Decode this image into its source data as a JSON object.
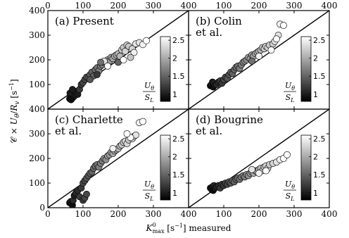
{
  "figure": {
    "ylabel": "C × U_θ/R_v [s⁻¹]",
    "ylabel_parts": {
      "pre": "𝒞 × ",
      "num": "U",
      "sub1": "θ",
      "slash": "/",
      "den": "R",
      "sub2": "v",
      "unit": " [s",
      "exp": "−1",
      "close": "]"
    },
    "xlabel_parts": {
      "sym": "K",
      "sup": "0",
      "sub": "max",
      "unit": " [s",
      "exp": "−1",
      "rest": "] measured"
    }
  },
  "colorbar": {
    "range": [
      0.8,
      2.6
    ],
    "ticks": [
      "1",
      "1.5",
      "2",
      "2.5"
    ],
    "tick_values": [
      1,
      1.5,
      2,
      2.5
    ],
    "label_num": "U",
    "label_num_sub": "θ",
    "label_den": "S",
    "label_den_sub": "L"
  },
  "chart_data": [
    {
      "type": "scatter",
      "label": "(a) Present",
      "label_lines": [
        "(a) Present"
      ],
      "xlim": [
        0,
        400
      ],
      "ylim": [
        0,
        400
      ],
      "xticks": [
        0,
        100,
        200,
        300,
        400
      ],
      "yticks": [
        0,
        100,
        200,
        300,
        400
      ],
      "reference_line": "y = x",
      "points": [
        [
          62,
          42,
          0.9
        ],
        [
          65,
          48,
          1.0
        ],
        [
          68,
          55,
          1.0
        ],
        [
          70,
          45,
          0.9
        ],
        [
          72,
          60,
          1.1
        ],
        [
          75,
          52,
          1.0
        ],
        [
          63,
          65,
          1.0
        ],
        [
          78,
          72,
          1.1
        ],
        [
          82,
          68,
          1.1
        ],
        [
          70,
          80,
          1.0
        ],
        [
          66,
          38,
          0.9
        ],
        [
          85,
          60,
          1.0
        ],
        [
          90,
          80,
          1.2
        ],
        [
          95,
          100,
          1.2
        ],
        [
          100,
          108,
          1.3
        ],
        [
          105,
          120,
          1.3
        ],
        [
          110,
          130,
          1.4
        ],
        [
          115,
          128,
          1.4
        ],
        [
          120,
          140,
          1.5
        ],
        [
          125,
          150,
          1.5
        ],
        [
          130,
          135,
          1.5
        ],
        [
          135,
          160,
          1.6
        ],
        [
          140,
          168,
          1.6
        ],
        [
          145,
          155,
          1.7
        ],
        [
          150,
          175,
          1.7
        ],
        [
          155,
          180,
          1.7
        ],
        [
          160,
          190,
          1.8
        ],
        [
          165,
          185,
          1.8
        ],
        [
          170,
          200,
          1.9
        ],
        [
          175,
          195,
          1.9
        ],
        [
          180,
          210,
          1.9
        ],
        [
          185,
          205,
          2.0
        ],
        [
          190,
          215,
          2.0
        ],
        [
          195,
          220,
          2.0
        ],
        [
          200,
          225,
          2.1
        ],
        [
          205,
          215,
          2.1
        ],
        [
          210,
          240,
          2.2
        ],
        [
          215,
          250,
          2.2
        ],
        [
          220,
          235,
          2.3
        ],
        [
          225,
          260,
          2.3
        ],
        [
          230,
          255,
          2.2
        ],
        [
          240,
          245,
          2.3
        ],
        [
          250,
          265,
          2.4
        ],
        [
          260,
          270,
          2.4
        ],
        [
          270,
          262,
          2.5
        ],
        [
          280,
          278,
          2.6
        ],
        [
          245,
          230,
          2.5
        ],
        [
          235,
          210,
          2.2
        ],
        [
          160,
          195,
          2.4
        ],
        [
          150,
          190,
          1.6
        ],
        [
          170,
          175,
          2.6
        ],
        [
          120,
          120,
          1.4
        ],
        [
          140,
          140,
          1.2
        ],
        [
          200,
          190,
          1.5
        ],
        [
          215,
          200,
          2.6
        ]
      ]
    },
    {
      "type": "scatter",
      "label": "(b) Colin et al.",
      "label_lines": [
        "(b) Colin",
        "et al."
      ],
      "xlim": [
        0,
        400
      ],
      "ylim": [
        0,
        400
      ],
      "xticks": [
        0,
        100,
        200,
        300,
        400
      ],
      "yticks": [
        0,
        100,
        200,
        300,
        400
      ],
      "reference_line": "y = x",
      "points": [
        [
          62,
          95,
          0.9
        ],
        [
          65,
          100,
          1.0
        ],
        [
          68,
          110,
          1.0
        ],
        [
          70,
          90,
          0.9
        ],
        [
          72,
          105,
          1.1
        ],
        [
          75,
          98,
          1.0
        ],
        [
          80,
          100,
          1.1
        ],
        [
          85,
          110,
          1.1
        ],
        [
          90,
          115,
          1.2
        ],
        [
          95,
          105,
          1.2
        ],
        [
          100,
          120,
          1.3
        ],
        [
          105,
          130,
          1.3
        ],
        [
          110,
          125,
          1.4
        ],
        [
          115,
          140,
          1.4
        ],
        [
          120,
          150,
          1.5
        ],
        [
          125,
          145,
          1.5
        ],
        [
          130,
          160,
          1.5
        ],
        [
          135,
          170,
          1.6
        ],
        [
          140,
          175,
          1.6
        ],
        [
          145,
          165,
          1.7
        ],
        [
          150,
          180,
          1.7
        ],
        [
          155,
          190,
          1.7
        ],
        [
          160,
          195,
          1.8
        ],
        [
          165,
          200,
          1.8
        ],
        [
          170,
          210,
          1.9
        ],
        [
          175,
          205,
          1.9
        ],
        [
          180,
          220,
          1.9
        ],
        [
          185,
          215,
          2.0
        ],
        [
          190,
          225,
          2.0
        ],
        [
          195,
          230,
          2.0
        ],
        [
          200,
          235,
          2.1
        ],
        [
          205,
          240,
          2.1
        ],
        [
          210,
          250,
          2.2
        ],
        [
          215,
          245,
          2.2
        ],
        [
          220,
          255,
          2.3
        ],
        [
          225,
          250,
          2.3
        ],
        [
          230,
          260,
          2.2
        ],
        [
          240,
          265,
          2.3
        ],
        [
          245,
          275,
          2.4
        ],
        [
          255,
          300,
          2.4
        ],
        [
          260,
          345,
          2.5
        ],
        [
          270,
          340,
          2.6
        ],
        [
          250,
          285,
          2.6
        ],
        [
          235,
          240,
          2.6
        ],
        [
          200,
          215,
          2.5
        ],
        [
          180,
          195,
          1.6
        ]
      ]
    },
    {
      "type": "scatter",
      "label": "(c) Charlette et al.",
      "label_lines": [
        "(c) Charlette",
        "et al."
      ],
      "xlim": [
        0,
        400
      ],
      "ylim": [
        0,
        400
      ],
      "xticks": [
        0,
        100,
        200,
        300,
        400
      ],
      "yticks": [
        0,
        100,
        200,
        300,
        400
      ],
      "reference_line": "y = x",
      "points": [
        [
          62,
          20,
          0.9
        ],
        [
          65,
          25,
          1.0
        ],
        [
          68,
          15,
          1.0
        ],
        [
          70,
          10,
          0.9
        ],
        [
          72,
          30,
          1.1
        ],
        [
          75,
          50,
          1.0
        ],
        [
          80,
          60,
          1.1
        ],
        [
          85,
          70,
          1.1
        ],
        [
          90,
          45,
          1.2
        ],
        [
          95,
          80,
          1.2
        ],
        [
          100,
          30,
          1.2
        ],
        [
          105,
          40,
          1.3
        ],
        [
          110,
          55,
          1.3
        ],
        [
          100,
          100,
          1.3
        ],
        [
          105,
          110,
          1.3
        ],
        [
          110,
          120,
          1.4
        ],
        [
          115,
          130,
          1.4
        ],
        [
          120,
          140,
          1.5
        ],
        [
          125,
          145,
          1.5
        ],
        [
          130,
          160,
          1.5
        ],
        [
          135,
          170,
          1.6
        ],
        [
          140,
          175,
          1.6
        ],
        [
          145,
          165,
          1.7
        ],
        [
          150,
          180,
          1.7
        ],
        [
          155,
          190,
          1.7
        ],
        [
          160,
          200,
          1.8
        ],
        [
          165,
          195,
          1.8
        ],
        [
          170,
          210,
          1.9
        ],
        [
          175,
          215,
          1.9
        ],
        [
          180,
          225,
          1.9
        ],
        [
          185,
          220,
          2.0
        ],
        [
          190,
          230,
          2.0
        ],
        [
          195,
          235,
          2.0
        ],
        [
          200,
          240,
          2.1
        ],
        [
          205,
          250,
          2.1
        ],
        [
          210,
          255,
          2.2
        ],
        [
          215,
          265,
          2.2
        ],
        [
          220,
          270,
          2.3
        ],
        [
          225,
          260,
          2.3
        ],
        [
          230,
          275,
          2.2
        ],
        [
          240,
          280,
          2.3
        ],
        [
          245,
          290,
          2.4
        ],
        [
          250,
          295,
          2.4
        ],
        [
          260,
          345,
          2.5
        ],
        [
          270,
          350,
          2.6
        ],
        [
          235,
          285,
          2.6
        ],
        [
          225,
          300,
          2.6
        ],
        [
          185,
          240,
          2.5
        ]
      ]
    },
    {
      "type": "scatter",
      "label": "(d) Bougrine et al.",
      "label_lines": [
        "(d) Bougrine",
        "et al."
      ],
      "xlim": [
        0,
        400
      ],
      "ylim": [
        0,
        400
      ],
      "xticks": [
        0,
        100,
        200,
        300,
        400
      ],
      "yticks": [
        0,
        100,
        200,
        300,
        400
      ],
      "reference_line": "y = x",
      "points": [
        [
          62,
          80,
          0.9
        ],
        [
          65,
          75,
          1.0
        ],
        [
          68,
          85,
          1.0
        ],
        [
          70,
          70,
          0.9
        ],
        [
          72,
          90,
          1.1
        ],
        [
          75,
          80,
          1.0
        ],
        [
          80,
          85,
          1.1
        ],
        [
          85,
          90,
          1.1
        ],
        [
          90,
          80,
          1.2
        ],
        [
          95,
          95,
          1.2
        ],
        [
          100,
          90,
          1.2
        ],
        [
          105,
          100,
          1.3
        ],
        [
          110,
          95,
          1.3
        ],
        [
          115,
          105,
          1.4
        ],
        [
          120,
          100,
          1.4
        ],
        [
          125,
          110,
          1.5
        ],
        [
          130,
          105,
          1.5
        ],
        [
          135,
          115,
          1.5
        ],
        [
          140,
          120,
          1.6
        ],
        [
          145,
          115,
          1.6
        ],
        [
          150,
          125,
          1.7
        ],
        [
          155,
          130,
          1.7
        ],
        [
          160,
          125,
          1.7
        ],
        [
          165,
          135,
          1.8
        ],
        [
          170,
          130,
          1.8
        ],
        [
          175,
          140,
          1.9
        ],
        [
          180,
          145,
          1.9
        ],
        [
          185,
          140,
          2.0
        ],
        [
          190,
          150,
          2.0
        ],
        [
          195,
          145,
          2.0
        ],
        [
          200,
          155,
          2.1
        ],
        [
          205,
          160,
          2.1
        ],
        [
          210,
          150,
          2.2
        ],
        [
          215,
          165,
          2.2
        ],
        [
          220,
          170,
          2.3
        ],
        [
          225,
          160,
          2.3
        ],
        [
          230,
          175,
          2.2
        ],
        [
          240,
          180,
          2.3
        ],
        [
          250,
          185,
          2.4
        ],
        [
          260,
          195,
          2.5
        ],
        [
          270,
          200,
          2.6
        ],
        [
          280,
          215,
          2.6
        ],
        [
          200,
          140,
          2.5
        ],
        [
          220,
          150,
          2.6
        ],
        [
          180,
          155,
          2.4
        ]
      ]
    }
  ]
}
